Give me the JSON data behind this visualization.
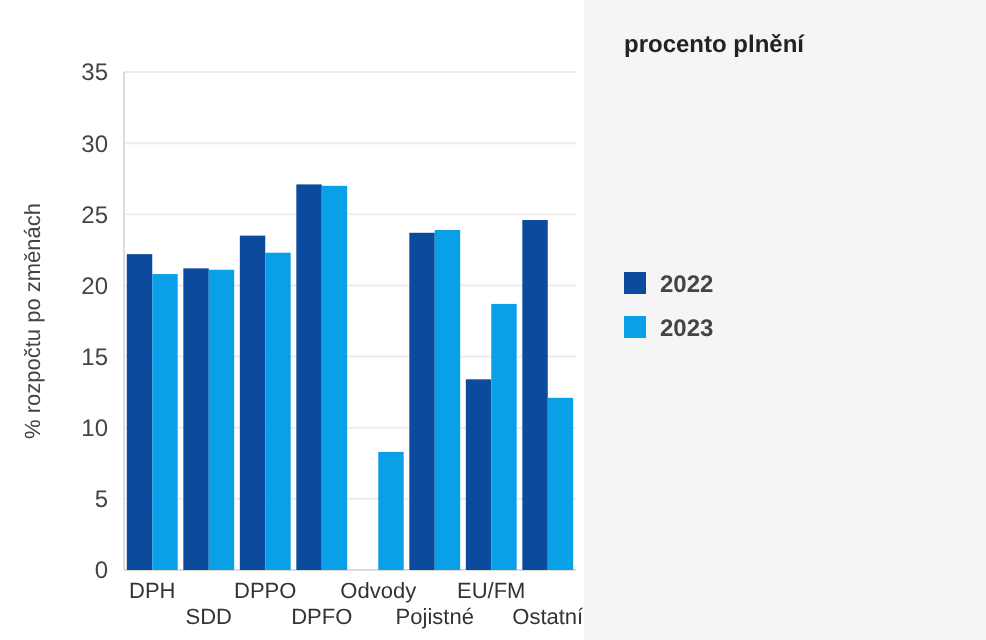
{
  "chart_data": {
    "type": "bar",
    "legend_title": "procento plnění",
    "ylabel": "% rozpočtu po změnách",
    "categories": [
      "DPH",
      "SDD",
      "DPPO",
      "DPFO",
      "Odvody",
      "Pojistné",
      "EU/FM",
      "Ostatní"
    ],
    "series": [
      {
        "name": "2022",
        "color": "#0b4a9c",
        "values": [
          22.2,
          21.2,
          23.5,
          27.1,
          null,
          23.7,
          13.4,
          24.6
        ]
      },
      {
        "name": "2023",
        "color": "#0aa0e8",
        "values": [
          20.8,
          21.1,
          22.3,
          27.0,
          8.3,
          23.9,
          18.7,
          12.1
        ]
      }
    ],
    "ylim": [
      0,
      35
    ],
    "yticks": [
      0,
      5,
      10,
      15,
      20,
      25,
      30,
      35
    ],
    "grid": "y",
    "legend": "right"
  }
}
